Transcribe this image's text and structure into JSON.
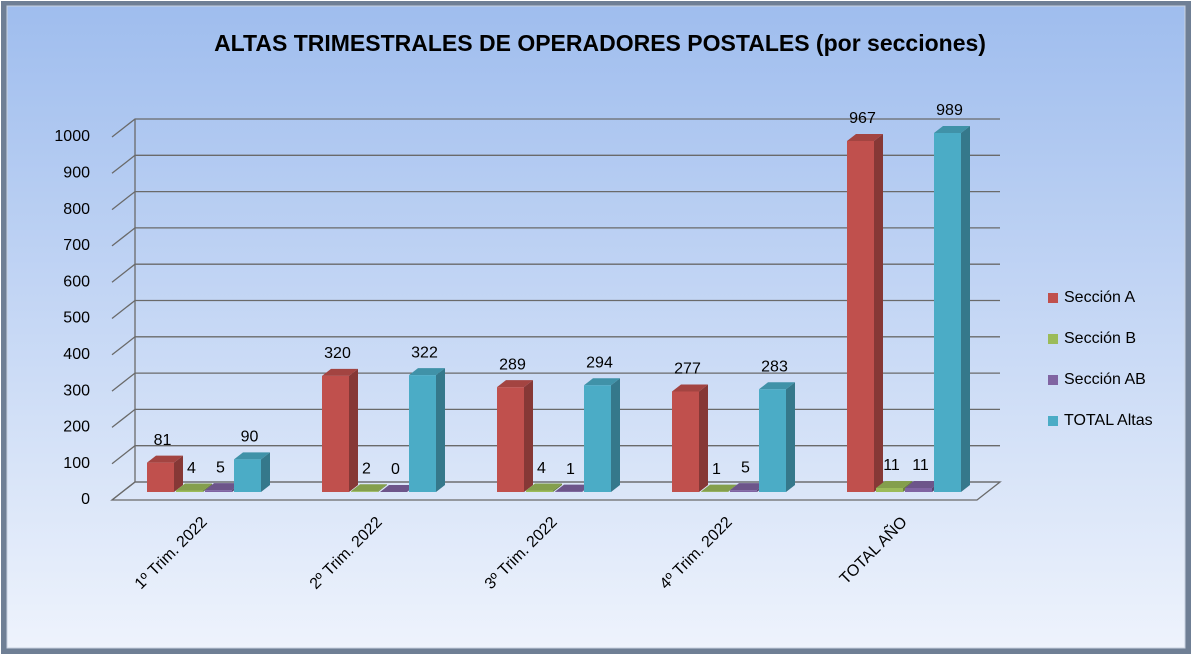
{
  "chart_data": {
    "type": "bar3d",
    "title": "ALTAS TRIMESTRALES DE OPERADORES POSTALES (por secciones)",
    "categories": [
      "1º Trim. 2022",
      "2º Trim. 2022",
      "3º Trim. 2022",
      "4º Trim. 2022",
      "TOTAL AÑO"
    ],
    "series": [
      {
        "name": "Sección A",
        "color": "#c0504d",
        "values": [
          81,
          320,
          289,
          277,
          967
        ]
      },
      {
        "name": "Sección B",
        "color": "#9bbb59",
        "values": [
          4,
          2,
          4,
          1,
          11
        ]
      },
      {
        "name": "Sección AB",
        "color": "#8064a2",
        "values": [
          5,
          0,
          1,
          5,
          11
        ]
      },
      {
        "name": "TOTAL Altas",
        "color": "#4bacc6",
        "values": [
          90,
          322,
          294,
          283,
          989
        ]
      }
    ],
    "ylim": [
      0,
      1000
    ],
    "yticks": [
      0,
      100,
      200,
      300,
      400,
      500,
      600,
      700,
      800,
      900,
      1000
    ],
    "grid": true,
    "legend": "right"
  }
}
